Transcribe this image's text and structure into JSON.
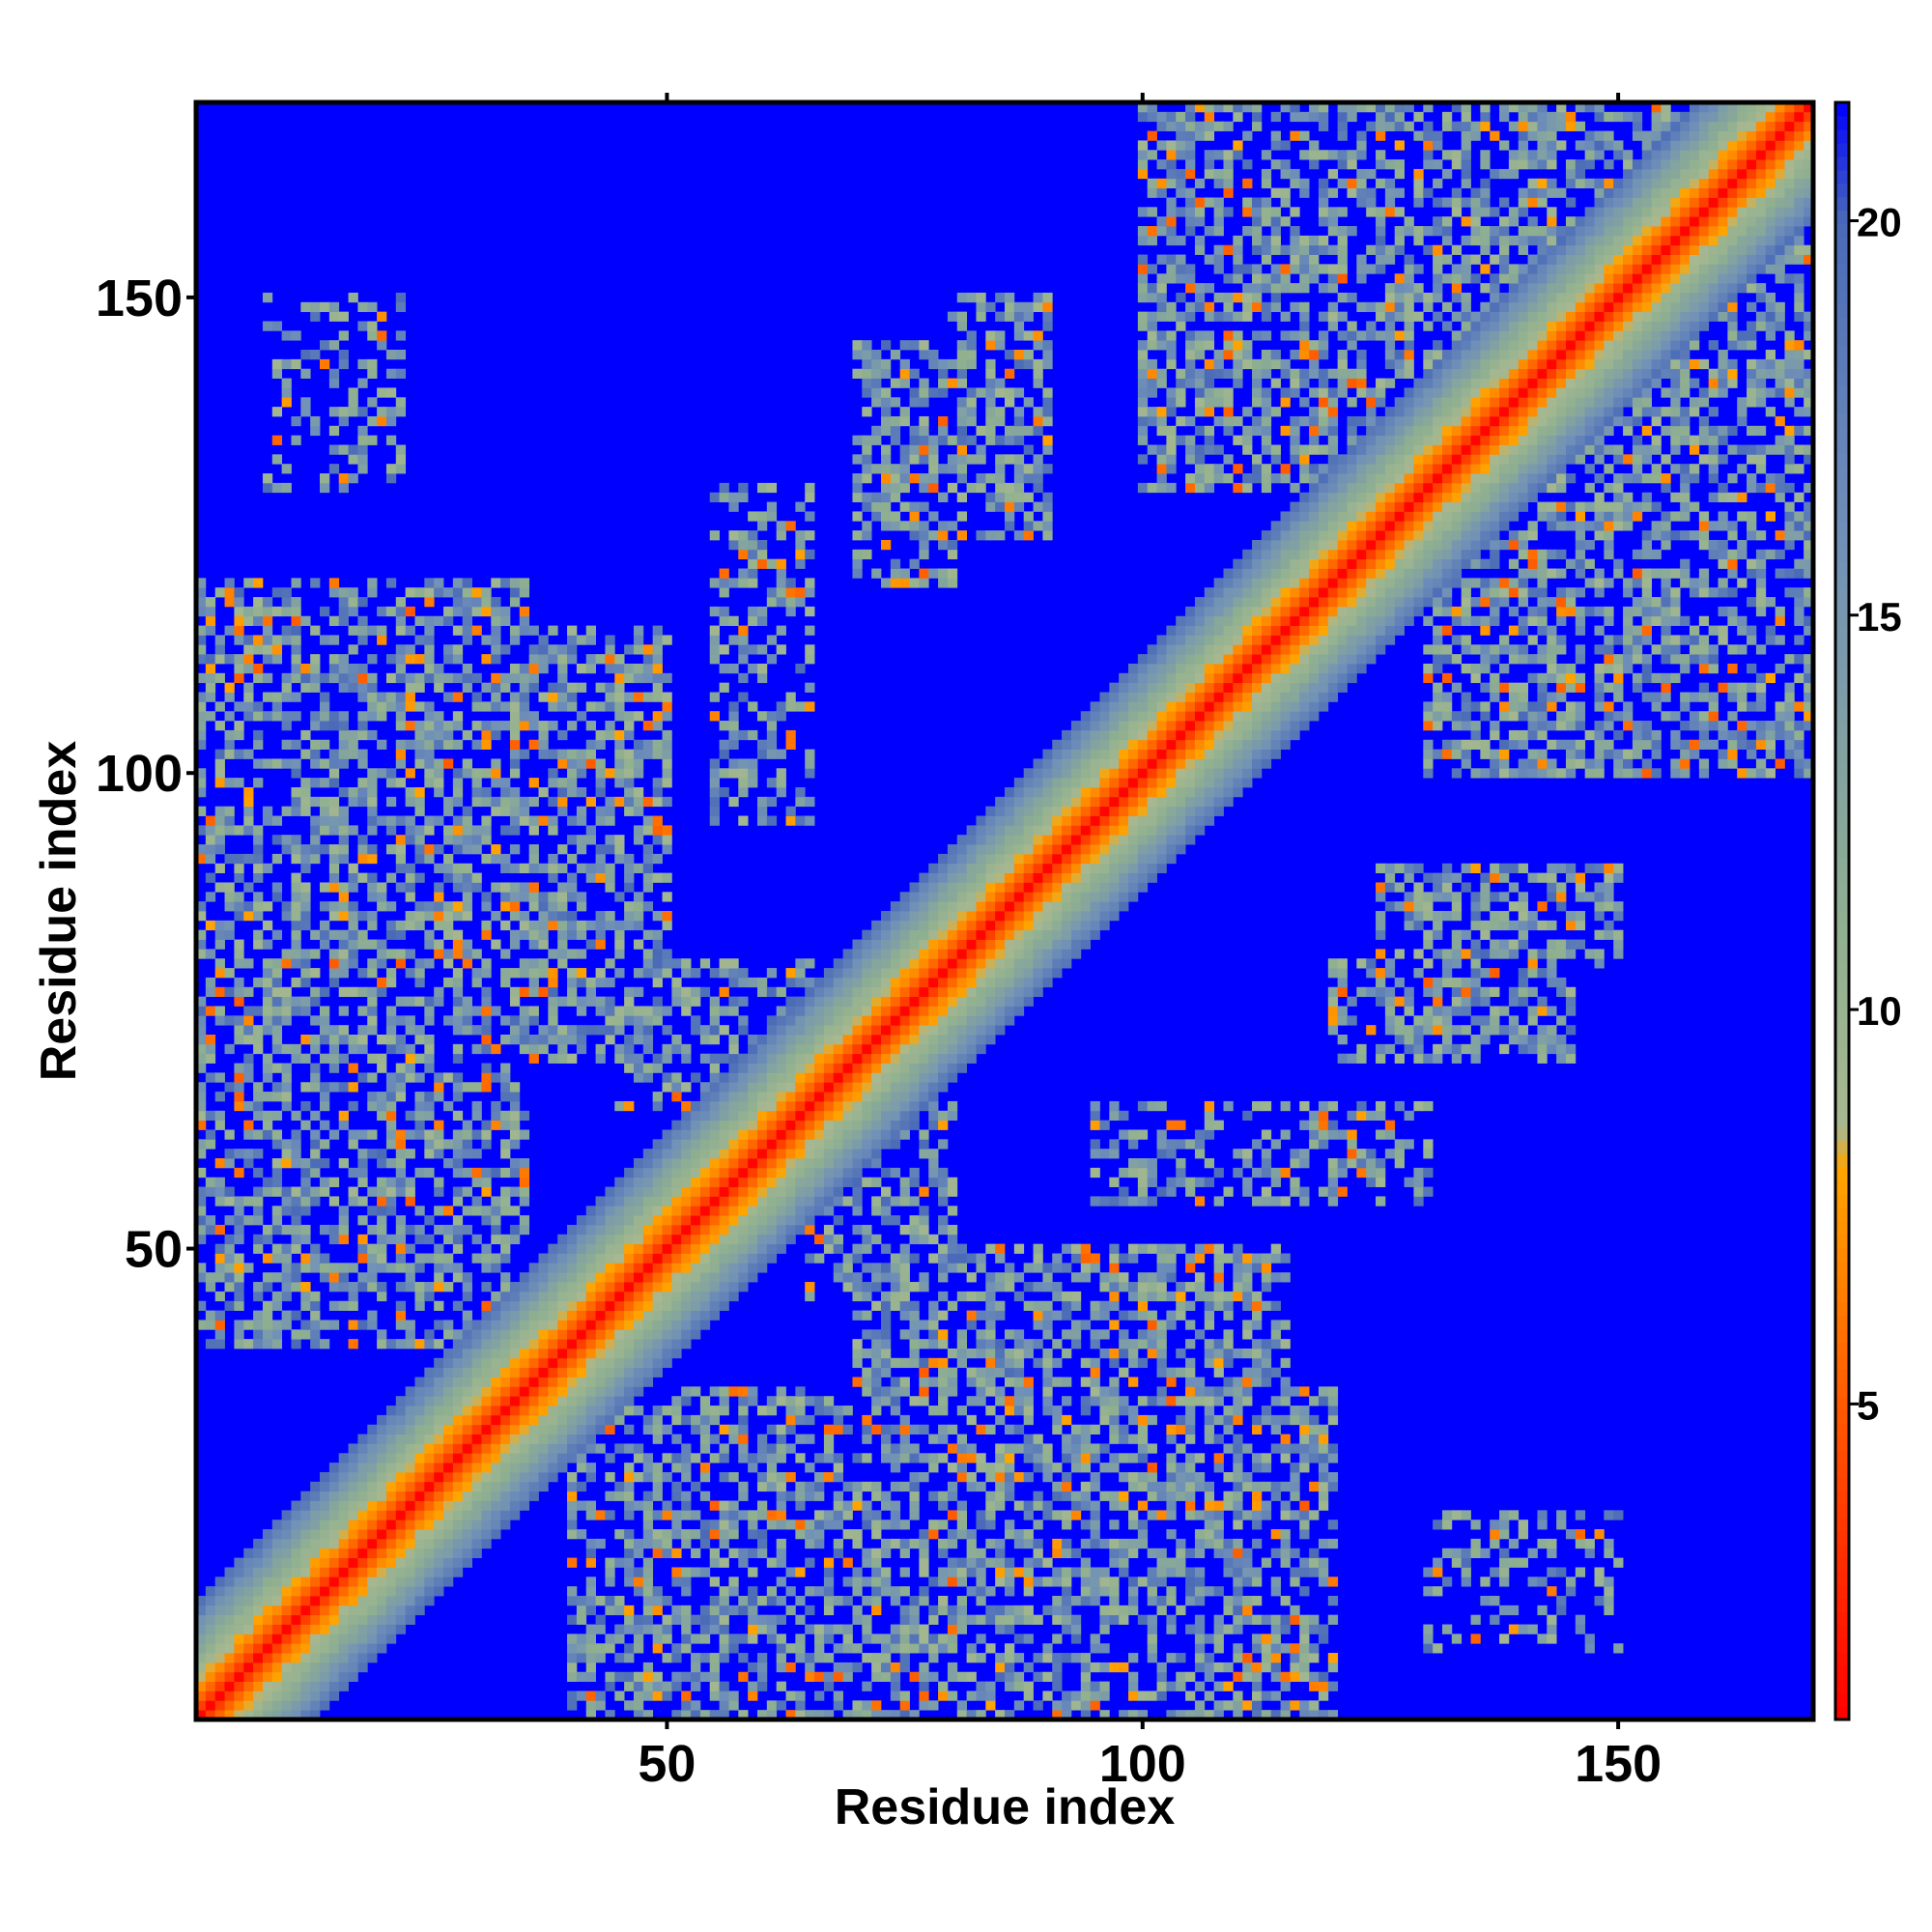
{
  "chart_data": {
    "type": "heatmap",
    "title": "",
    "xlabel": "Residue index",
    "ylabel": "Residue index",
    "n_residues": 170,
    "xlim": [
      1,
      170
    ],
    "ylim": [
      1,
      170
    ],
    "x_ticks": [
      50,
      100,
      150
    ],
    "y_ticks": [
      50,
      100,
      150
    ],
    "colorbar": {
      "range": [
        1,
        21.5
      ],
      "ticks": [
        5,
        10,
        15,
        20
      ],
      "stops": [
        {
          "value": 1,
          "color": "#ff0000"
        },
        {
          "value": 5,
          "color": "#ff5a00"
        },
        {
          "value": 8,
          "color": "#ffa500"
        },
        {
          "value": 8.5,
          "color": "#a8b890"
        },
        {
          "value": 11,
          "color": "#90b090"
        },
        {
          "value": 16,
          "color": "#7090b8"
        },
        {
          "value": 20,
          "color": "#4a6ab8"
        },
        {
          "value": 21.5,
          "color": "#0000ff"
        }
      ],
      "background_color": "#0000ff"
    },
    "description_data": {
      "diagonal_distance_profile": [
        {
          "offset": 0,
          "value": 1.2
        },
        {
          "offset": 1,
          "value": 3.8
        },
        {
          "offset": 2,
          "value": 5.5
        },
        {
          "offset": 3,
          "value": 7.0
        },
        {
          "offset": 4,
          "value": 8.2
        },
        {
          "offset": 5,
          "value": 9.5
        },
        {
          "offset": 6,
          "value": 10.5
        },
        {
          "offset": 7,
          "value": 11.8
        },
        {
          "offset": 8,
          "value": 13.0
        },
        {
          "offset": 9,
          "value": 14.5
        },
        {
          "offset": 10,
          "value": 16.0
        },
        {
          "offset": 11,
          "value": 17.5
        },
        {
          "offset": 12,
          "value": 19.0
        }
      ],
      "contact_regions": [
        {
          "i": [
            1,
            35
          ],
          "j": [
            40,
            120
          ],
          "strength": 0.55
        },
        {
          "i": [
            30,
            50
          ],
          "j": [
            70,
            115
          ],
          "strength": 0.6
        },
        {
          "i": [
            55,
            65
          ],
          "j": [
            95,
            130
          ],
          "strength": 0.45
        },
        {
          "i": [
            70,
            80
          ],
          "j": [
            120,
            145
          ],
          "strength": 0.55
        },
        {
          "i": [
            80,
            90
          ],
          "j": [
            125,
            150
          ],
          "strength": 0.55
        },
        {
          "i": [
            100,
            120
          ],
          "j": [
            130,
            170
          ],
          "strength": 0.6
        },
        {
          "i": [
            120,
            170
          ],
          "j": [
            135,
            170
          ],
          "strength": 0.55
        },
        {
          "i": [
            8,
            22
          ],
          "j": [
            130,
            150
          ],
          "strength": 0.35
        },
        {
          "i": [
            45,
            65
          ],
          "j": [
            65,
            80
          ],
          "strength": 0.5
        }
      ]
    }
  }
}
